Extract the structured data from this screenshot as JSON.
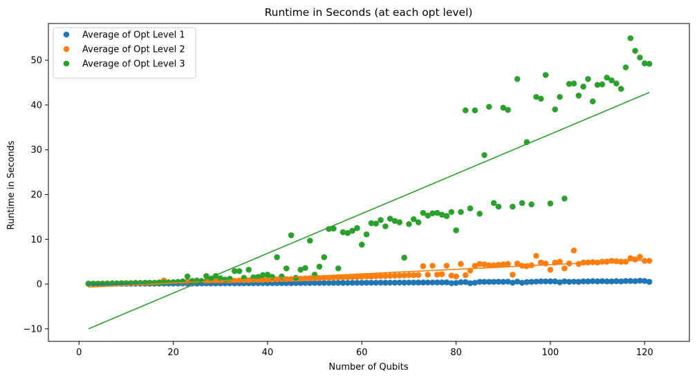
{
  "chart_data": {
    "type": "scatter",
    "title": "Runtime in Seconds (at each opt level)",
    "xlabel": "Number of Qubits",
    "ylabel": "Runtime in Seconds",
    "xlim": [
      -6.5,
      129.5
    ],
    "ylim": [
      -12.8,
      58.2
    ],
    "xticks": [
      0,
      20,
      40,
      60,
      80,
      100,
      120
    ],
    "yticks": [
      -10,
      0,
      10,
      20,
      30,
      40,
      50
    ],
    "legend_position": "top-left",
    "series": [
      {
        "name": "Average of Opt Level 1",
        "color": "#1f77b4",
        "x": [
          2,
          3,
          4,
          5,
          6,
          7,
          8,
          9,
          10,
          11,
          12,
          13,
          14,
          15,
          16,
          17,
          18,
          19,
          20,
          21,
          22,
          23,
          24,
          25,
          26,
          27,
          28,
          29,
          30,
          31,
          32,
          33,
          34,
          35,
          36,
          37,
          38,
          39,
          40,
          41,
          42,
          43,
          44,
          45,
          46,
          47,
          48,
          49,
          50,
          51,
          52,
          53,
          54,
          55,
          56,
          57,
          58,
          59,
          60,
          61,
          62,
          63,
          64,
          65,
          66,
          67,
          68,
          69,
          70,
          71,
          72,
          73,
          74,
          75,
          76,
          77,
          78,
          79,
          80,
          81,
          82,
          83,
          84,
          85,
          86,
          87,
          88,
          89,
          90,
          91,
          92,
          93,
          94,
          95,
          96,
          97,
          98,
          99,
          100,
          101,
          102,
          103,
          104,
          105,
          106,
          107,
          108,
          109,
          110,
          111,
          112,
          113,
          114,
          115,
          116,
          117,
          118,
          119,
          120,
          121
        ],
        "y": [
          0.05,
          0.05,
          0.05,
          0.06,
          0.06,
          0.06,
          0.07,
          0.07,
          0.08,
          0.08,
          0.09,
          0.09,
          0.1,
          0.1,
          0.1,
          0.11,
          0.11,
          0.12,
          0.12,
          0.12,
          0.13,
          0.13,
          0.14,
          0.14,
          0.15,
          0.15,
          0.15,
          0.16,
          0.16,
          0.17,
          0.17,
          0.18,
          0.18,
          0.18,
          0.19,
          0.19,
          0.2,
          0.2,
          0.2,
          0.21,
          0.21,
          0.22,
          0.22,
          0.22,
          0.23,
          0.23,
          0.24,
          0.24,
          0.25,
          0.25,
          0.25,
          0.26,
          0.26,
          0.27,
          0.27,
          0.28,
          0.28,
          0.28,
          0.29,
          0.3,
          0.3,
          0.3,
          0.31,
          0.31,
          0.32,
          0.32,
          0.33,
          0.33,
          0.34,
          0.34,
          0.35,
          0.35,
          0.36,
          0.36,
          0.37,
          0.37,
          0.38,
          0.2,
          0.25,
          0.4,
          0.45,
          0.2,
          0.3,
          0.5,
          0.5,
          0.5,
          0.5,
          0.52,
          0.5,
          0.55,
          0.3,
          0.55,
          0.3,
          0.45,
          0.5,
          0.55,
          0.6,
          0.6,
          0.6,
          0.6,
          0.4,
          0.6,
          0.5,
          0.55,
          0.5,
          0.6,
          0.6,
          0.65,
          0.6,
          0.65,
          0.6,
          0.6,
          0.65,
          0.6,
          0.7,
          0.7,
          0.65,
          0.75,
          0.7,
          0.5
        ]
      },
      {
        "name": "Average of Opt Level 2",
        "color": "#ff7f0e",
        "x": [
          2,
          3,
          4,
          5,
          6,
          7,
          8,
          9,
          10,
          11,
          12,
          13,
          14,
          15,
          16,
          17,
          18,
          19,
          20,
          21,
          22,
          23,
          24,
          25,
          26,
          27,
          28,
          29,
          30,
          31,
          32,
          33,
          34,
          35,
          36,
          37,
          38,
          39,
          40,
          41,
          42,
          43,
          44,
          45,
          46,
          47,
          48,
          49,
          50,
          51,
          52,
          53,
          54,
          55,
          56,
          57,
          58,
          59,
          60,
          61,
          62,
          63,
          64,
          65,
          66,
          67,
          68,
          69,
          70,
          71,
          72,
          73,
          74,
          75,
          76,
          77,
          78,
          79,
          80,
          81,
          82,
          83,
          84,
          85,
          86,
          87,
          88,
          89,
          90,
          91,
          92,
          93,
          94,
          95,
          96,
          97,
          98,
          99,
          100,
          101,
          102,
          103,
          104,
          105,
          106,
          107,
          108,
          109,
          110,
          111,
          112,
          113,
          114,
          115,
          116,
          117,
          118,
          119,
          120,
          121
        ],
        "y": [
          0.1,
          0.1,
          0.1,
          0.1,
          0.15,
          0.15,
          0.15,
          0.2,
          0.2,
          0.2,
          0.25,
          0.25,
          0.3,
          0.3,
          0.3,
          0.35,
          0.8,
          0.4,
          0.4,
          0.45,
          0.45,
          0.5,
          0.5,
          0.55,
          0.55,
          0.6,
          0.6,
          0.65,
          0.65,
          0.7,
          0.7,
          0.75,
          0.8,
          0.8,
          0.85,
          0.9,
          0.9,
          0.95,
          1.0,
          1.0,
          1.05,
          1.1,
          1.1,
          1.15,
          1.2,
          1.2,
          1.25,
          1.3,
          1.3,
          1.35,
          1.4,
          1.4,
          1.45,
          1.5,
          1.5,
          1.55,
          1.6,
          1.6,
          1.65,
          1.7,
          1.7,
          1.75,
          1.8,
          1.8,
          1.85,
          1.9,
          1.9,
          1.95,
          2.0,
          2.0,
          2.05,
          4.0,
          2.1,
          4.1,
          2.1,
          2.2,
          4.1,
          1.9,
          1.7,
          4.5,
          2.0,
          3.0,
          4.1,
          4.5,
          4.4,
          4.2,
          4.2,
          4.3,
          4.4,
          4.5,
          2.1,
          4.6,
          4.1,
          4.0,
          4.2,
          6.3,
          4.8,
          4.6,
          3.2,
          4.8,
          5.0,
          3.5,
          4.6,
          7.5,
          4.5,
          4.8,
          4.8,
          4.9,
          4.8,
          5.0,
          5.0,
          5.2,
          5.1,
          5.0,
          5.0,
          5.8,
          5.5,
          6.1,
          5.2,
          5.2
        ]
      },
      {
        "name": "Average of Opt Level 3",
        "color": "#2ca02c",
        "x": [
          2,
          3,
          4,
          5,
          6,
          7,
          8,
          9,
          10,
          11,
          12,
          13,
          14,
          15,
          16,
          17,
          18,
          19,
          20,
          21,
          22,
          23,
          24,
          25,
          26,
          27,
          28,
          29,
          30,
          31,
          32,
          33,
          34,
          35,
          36,
          37,
          38,
          39,
          40,
          41,
          42,
          43,
          44,
          45,
          46,
          47,
          48,
          49,
          50,
          51,
          52,
          53,
          54,
          55,
          56,
          57,
          58,
          59,
          60,
          61,
          62,
          63,
          64,
          65,
          66,
          67,
          68,
          69,
          70,
          71,
          72,
          73,
          74,
          75,
          76,
          77,
          78,
          79,
          80,
          81,
          82,
          83,
          84,
          85,
          86,
          87,
          88,
          89,
          90,
          91,
          92,
          93,
          94,
          95,
          96,
          97,
          98,
          99,
          100,
          101,
          102,
          103,
          104,
          105,
          106,
          107,
          108,
          109,
          110,
          111,
          112,
          113,
          114,
          115,
          116,
          117,
          118,
          119,
          120,
          121
        ],
        "y": [
          0.1,
          0.1,
          0.1,
          0.1,
          0.1,
          0.15,
          0.15,
          0.2,
          0.2,
          0.2,
          0.25,
          0.25,
          0.3,
          0.3,
          0.3,
          0.35,
          0.35,
          0.4,
          0.4,
          0.5,
          0.6,
          1.7,
          0.7,
          0.8,
          0.7,
          1.8,
          1.2,
          1.8,
          1.3,
          1.0,
          1.2,
          2.9,
          2.9,
          1.4,
          3.2,
          1.5,
          1.6,
          2.0,
          2.1,
          1.6,
          6.0,
          1.7,
          3.5,
          10.9,
          1.4,
          3.2,
          3.6,
          9.7,
          2.1,
          3.9,
          6.0,
          12.3,
          12.4,
          3.5,
          11.6,
          11.4,
          11.9,
          12.5,
          8.8,
          11.1,
          13.6,
          13.5,
          14.3,
          12.9,
          14.6,
          14.1,
          13.8,
          5.9,
          13.4,
          14.5,
          13.8,
          15.9,
          15.3,
          15.8,
          15.9,
          15.5,
          15.2,
          16.1,
          12.0,
          16.1,
          38.8,
          16.9,
          38.8,
          15.7,
          28.8,
          39.6,
          18.1,
          17.3,
          39.4,
          38.9,
          17.3,
          45.8,
          18.1,
          31.7,
          17.8,
          41.8,
          41.4,
          46.7,
          18.0,
          39.0,
          41.8,
          19.1,
          44.7,
          44.8,
          42.1,
          44.1,
          45.8,
          40.8,
          44.5,
          44.6,
          46.1,
          45.5,
          44.8,
          43.6,
          48.4,
          54.9,
          52.1,
          50.6,
          49.3,
          49.2
        ]
      }
    ],
    "fit_lines": [
      {
        "series": "Average of Opt Level 1",
        "color": "#1f77b4",
        "x": [
          2,
          121
        ],
        "y": [
          -0.05,
          0.7
        ]
      },
      {
        "series": "Average of Opt Level 2",
        "color": "#ff7f0e",
        "x": [
          2,
          121
        ],
        "y": [
          -0.7,
          5.4
        ]
      },
      {
        "series": "Average of Opt Level 3",
        "color": "#2ca02c",
        "x": [
          2,
          121
        ],
        "y": [
          -10.0,
          42.8
        ]
      }
    ]
  }
}
